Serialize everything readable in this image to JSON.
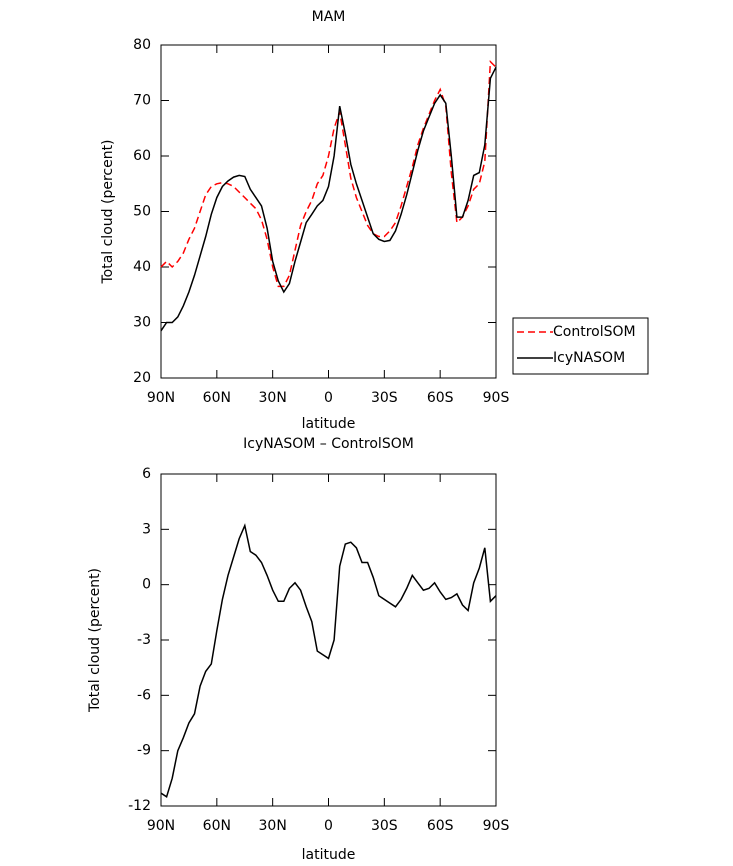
{
  "chart_data": [
    {
      "type": "line",
      "title": "MAM",
      "xlabel": "latitude",
      "ylabel": "Total cloud (percent)",
      "x": [
        90,
        87,
        84,
        81,
        78,
        75,
        72,
        69,
        66,
        63,
        60,
        57,
        54,
        51,
        48,
        45,
        42,
        39,
        36,
        33,
        30,
        27,
        24,
        21,
        18,
        15,
        12,
        9,
        6,
        3,
        0,
        -3,
        -6,
        -9,
        -12,
        -15,
        -18,
        -21,
        -24,
        -27,
        -30,
        -33,
        -36,
        -39,
        -42,
        -45,
        -48,
        -51,
        -54,
        -57,
        -60,
        -63,
        -66,
        -69,
        -72,
        -75,
        -78,
        -81,
        -84,
        -87,
        -90
      ],
      "series": [
        {
          "name": "ControlSOM",
          "color": "#ff0000",
          "line_style": "dashed",
          "values": [
            40,
            41,
            40,
            41,
            42.5,
            45,
            47,
            50,
            53,
            54.5,
            55,
            55.2,
            55,
            54.5,
            53.5,
            52.5,
            51.5,
            50.5,
            48.5,
            45,
            40,
            36.5,
            36.5,
            38.5,
            43,
            47.5,
            50,
            52,
            55,
            56.5,
            60,
            65,
            68,
            62,
            56,
            52.5,
            50,
            47.5,
            46,
            45.5,
            45.5,
            46.5,
            48,
            51,
            54.5,
            58,
            62,
            65,
            67.5,
            70,
            72,
            69,
            57,
            48,
            49,
            51,
            54,
            55,
            59,
            77,
            76
          ]
        },
        {
          "name": "IcyNASOM",
          "color": "#000000",
          "line_style": "solid",
          "values": [
            28.5,
            30,
            30,
            31,
            33,
            35.5,
            38.5,
            42,
            45.5,
            49.5,
            52.5,
            54.5,
            55.5,
            56.2,
            56.5,
            56.3,
            54,
            52.5,
            51,
            47,
            41,
            37.5,
            35.5,
            37,
            41,
            44.5,
            48,
            49.5,
            51,
            52,
            54.5,
            60,
            69,
            64,
            58.5,
            55,
            52,
            49,
            46,
            45,
            44.6,
            44.8,
            46.5,
            49.5,
            53,
            57,
            61,
            64.5,
            67,
            69.5,
            71,
            69.5,
            60,
            49,
            49,
            52,
            56.5,
            57,
            62,
            74,
            76
          ]
        }
      ],
      "xlim": [
        90,
        -90
      ],
      "xticks": [
        {
          "value": 90,
          "label": "90N"
        },
        {
          "value": 60,
          "label": "60N"
        },
        {
          "value": 30,
          "label": "30N"
        },
        0,
        {
          "value": -30,
          "label": "30S"
        },
        {
          "value": -60,
          "label": "60S"
        },
        {
          "value": -90,
          "label": "90S"
        }
      ],
      "ylim": [
        20,
        80
      ],
      "yticks": [
        20,
        30,
        40,
        50,
        60,
        70,
        80
      ],
      "legend": "right"
    },
    {
      "type": "line",
      "title": "IcyNASOM – ControlSOM",
      "xlabel": "latitude",
      "ylabel": "Total cloud (percent)",
      "x": [
        90,
        87,
        84,
        81,
        78,
        75,
        72,
        69,
        66,
        63,
        60,
        57,
        54,
        51,
        48,
        45,
        42,
        39,
        36,
        33,
        30,
        27,
        24,
        21,
        18,
        15,
        12,
        9,
        6,
        3,
        0,
        -3,
        -6,
        -9,
        -12,
        -15,
        -18,
        -21,
        -24,
        -27,
        -30,
        -33,
        -36,
        -39,
        -42,
        -45,
        -48,
        -51,
        -54,
        -57,
        -60,
        -63,
        -66,
        -69,
        -72,
        -75,
        -78,
        -81,
        -84,
        -87,
        -90
      ],
      "color": "#000000",
      "values": [
        -11.3,
        -11.5,
        -10.5,
        -9,
        -8.3,
        -7.5,
        -7,
        -5.5,
        -4.7,
        -4.3,
        -2.5,
        -0.8,
        0.5,
        1.5,
        2.5,
        3.2,
        1.8,
        1.6,
        1.2,
        0.5,
        -0.3,
        -0.9,
        -0.9,
        -0.2,
        0.1,
        -0.3,
        -1.2,
        -2,
        -3.6,
        -3.8,
        -4,
        -3,
        1,
        2.2,
        2.3,
        2,
        1.2,
        1.2,
        0.4,
        -0.6,
        -0.8,
        -1,
        -1.2,
        -0.8,
        -0.2,
        0.5,
        0.1,
        -0.3,
        -0.2,
        0.1,
        -0.4,
        -0.8,
        -0.7,
        -0.5,
        -1.1,
        -1.4,
        0.1,
        0.9,
        2,
        -0.9,
        -0.6
      ],
      "xlim": [
        90,
        -90
      ],
      "xticks": [
        {
          "value": 90,
          "label": "90N"
        },
        {
          "value": 60,
          "label": "60N"
        },
        {
          "value": 30,
          "label": "30N"
        },
        0,
        {
          "value": -30,
          "label": "30S"
        },
        {
          "value": -60,
          "label": "60S"
        },
        {
          "value": -90,
          "label": "90S"
        }
      ],
      "ylim": [
        -12,
        6
      ],
      "yticks": [
        -12,
        -9,
        -6,
        -3,
        0,
        3,
        6
      ]
    }
  ]
}
